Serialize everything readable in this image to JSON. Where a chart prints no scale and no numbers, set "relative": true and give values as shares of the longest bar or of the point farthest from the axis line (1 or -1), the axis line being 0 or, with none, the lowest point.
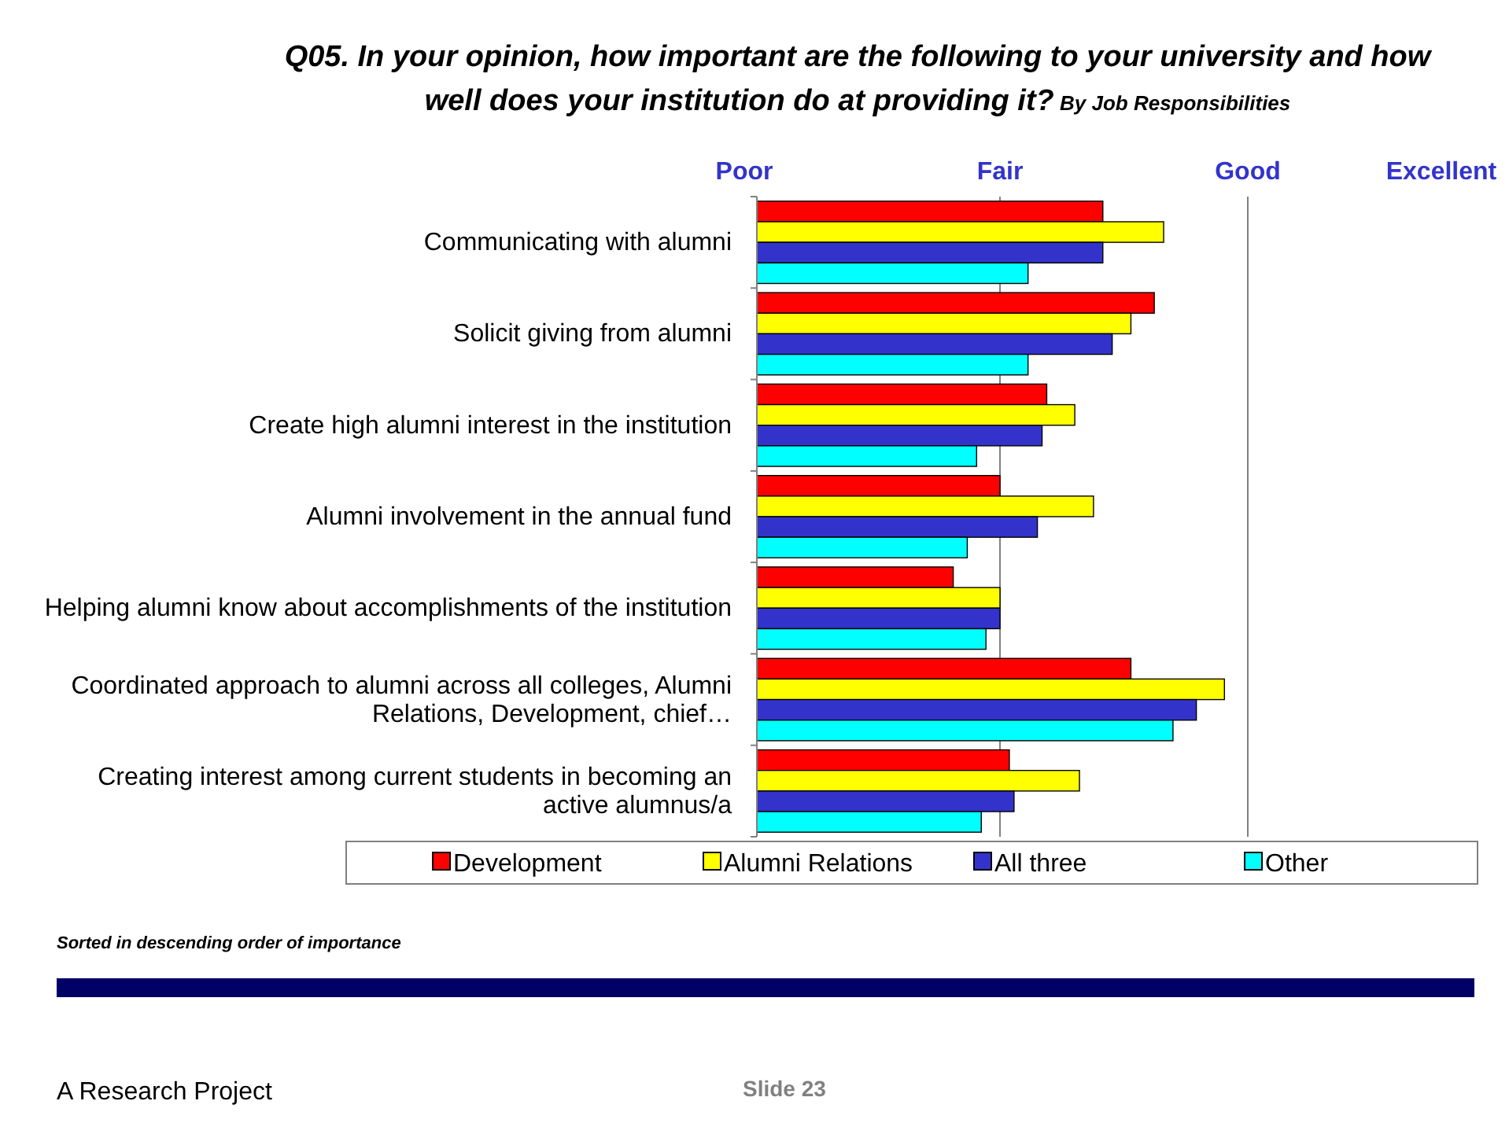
{
  "chart_data": {
    "type": "bar",
    "orientation": "horizontal",
    "relative": true,
    "title": "Q05.  In your opinion, how important are the following to your university and how well does your institution do at providing it?",
    "subtitle": "By Job Responsibilities",
    "categories": [
      "Communicating with alumni",
      "Solicit giving from alumni",
      "Create high alumni interest in the institution",
      "Alumni involvement in the annual fund",
      "Helping alumni know about accomplishments of the institution",
      "Coordinated approach to alumni across all colleges, Alumni Relations, Development, chief…",
      "Creating interest among current students in becoming an active alumnus/a"
    ],
    "series": [
      {
        "name": "Development",
        "color": "#ff0000",
        "values": [
          0.74,
          0.85,
          0.62,
          0.52,
          0.42,
          0.8,
          0.54
        ]
      },
      {
        "name": "Alumni Relations",
        "color": "#ffff00",
        "values": [
          0.87,
          0.8,
          0.68,
          0.72,
          0.52,
          1,
          0.69
        ]
      },
      {
        "name": "All three",
        "color": "#3333cc",
        "values": [
          0.74,
          0.76,
          0.61,
          0.6,
          0.52,
          0.94,
          0.55
        ]
      },
      {
        "name": "Other",
        "color": "#00ffff",
        "values": [
          0.58,
          0.58,
          0.47,
          0.45,
          0.49,
          0.89,
          0.48
        ]
      }
    ],
    "ref_lines": [
      {
        "axis": "x",
        "value": 0.52,
        "label": "Fair",
        "color": "#808080"
      },
      {
        "axis": "x",
        "value": 1.05,
        "label": "Good",
        "color": "#808080"
      }
    ],
    "legend": "bottom",
    "annotations": [
      "Poor",
      "Excellent",
      "Sorted in descending order of importance",
      "A Research Project",
      "Slide 23"
    ]
  }
}
